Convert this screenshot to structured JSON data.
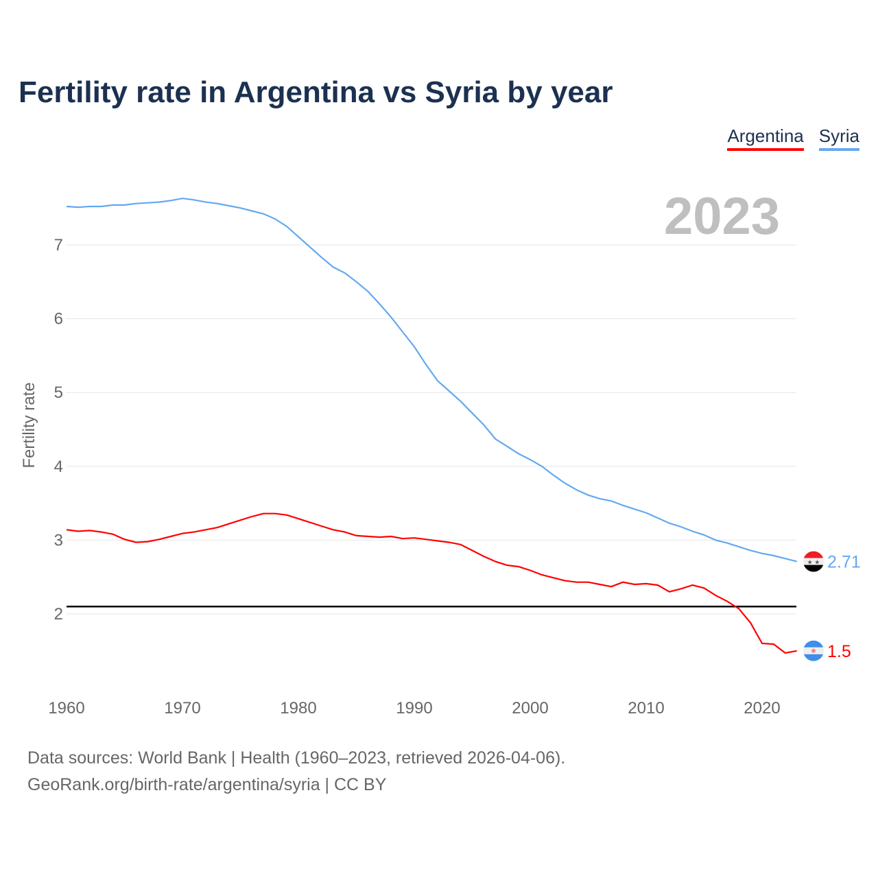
{
  "title": "Fertility rate in Argentina vs Syria by year",
  "legend": [
    {
      "label": "Argentina",
      "color": "#ff0000"
    },
    {
      "label": "Syria",
      "color": "#63a8f0"
    }
  ],
  "current_year": "2023",
  "source_line1": "Data sources: World Bank | Health (1960–2023, retrieved 2026-04-06).",
  "source_line2": "GeoRank.org/birth-rate/argentina/syria | CC BY",
  "chart_data": {
    "type": "line",
    "title": "Fertility rate in Argentina vs Syria by year",
    "xlabel": "",
    "ylabel": "Fertility rate",
    "xlim": [
      1960,
      2023
    ],
    "ylim": [
      1.0,
      7.9
    ],
    "xticks": [
      1960,
      1970,
      1980,
      1990,
      2000,
      2010,
      2020
    ],
    "yticks": [
      2,
      3,
      4,
      5,
      6,
      7
    ],
    "reference_line": 2.1,
    "x_start": 1960,
    "series": [
      {
        "name": "Argentina",
        "color": "#ff0000",
        "end_label": "1.5",
        "flag": "argentina-flag-icon",
        "values": [
          3.14,
          3.12,
          3.13,
          3.11,
          3.08,
          3.01,
          2.97,
          2.98,
          3.01,
          3.05,
          3.09,
          3.11,
          3.14,
          3.17,
          3.22,
          3.27,
          3.32,
          3.36,
          3.36,
          3.34,
          3.29,
          3.24,
          3.19,
          3.14,
          3.11,
          3.06,
          3.05,
          3.04,
          3.05,
          3.02,
          3.03,
          3.01,
          2.99,
          2.97,
          2.94,
          2.86,
          2.78,
          2.71,
          2.66,
          2.64,
          2.59,
          2.53,
          2.49,
          2.45,
          2.43,
          2.43,
          2.4,
          2.37,
          2.43,
          2.4,
          2.41,
          2.39,
          2.3,
          2.34,
          2.39,
          2.35,
          2.25,
          2.17,
          2.07,
          1.88,
          1.6,
          1.59,
          1.47,
          1.5
        ]
      },
      {
        "name": "Syria",
        "color": "#63a8f0",
        "end_label": "2.71",
        "flag": "syria-flag-icon",
        "values": [
          7.52,
          7.51,
          7.52,
          7.52,
          7.54,
          7.54,
          7.56,
          7.57,
          7.58,
          7.6,
          7.63,
          7.61,
          7.58,
          7.56,
          7.53,
          7.5,
          7.46,
          7.42,
          7.35,
          7.25,
          7.11,
          6.97,
          6.83,
          6.7,
          6.62,
          6.5,
          6.37,
          6.2,
          6.02,
          5.82,
          5.62,
          5.38,
          5.16,
          5.02,
          4.88,
          4.72,
          4.56,
          4.37,
          4.27,
          4.17,
          4.09,
          4.0,
          3.88,
          3.77,
          3.68,
          3.61,
          3.56,
          3.53,
          3.47,
          3.42,
          3.37,
          3.3,
          3.23,
          3.18,
          3.12,
          3.07,
          3.0,
          2.96,
          2.91,
          2.86,
          2.82,
          2.79,
          2.75,
          2.71
        ]
      }
    ]
  }
}
